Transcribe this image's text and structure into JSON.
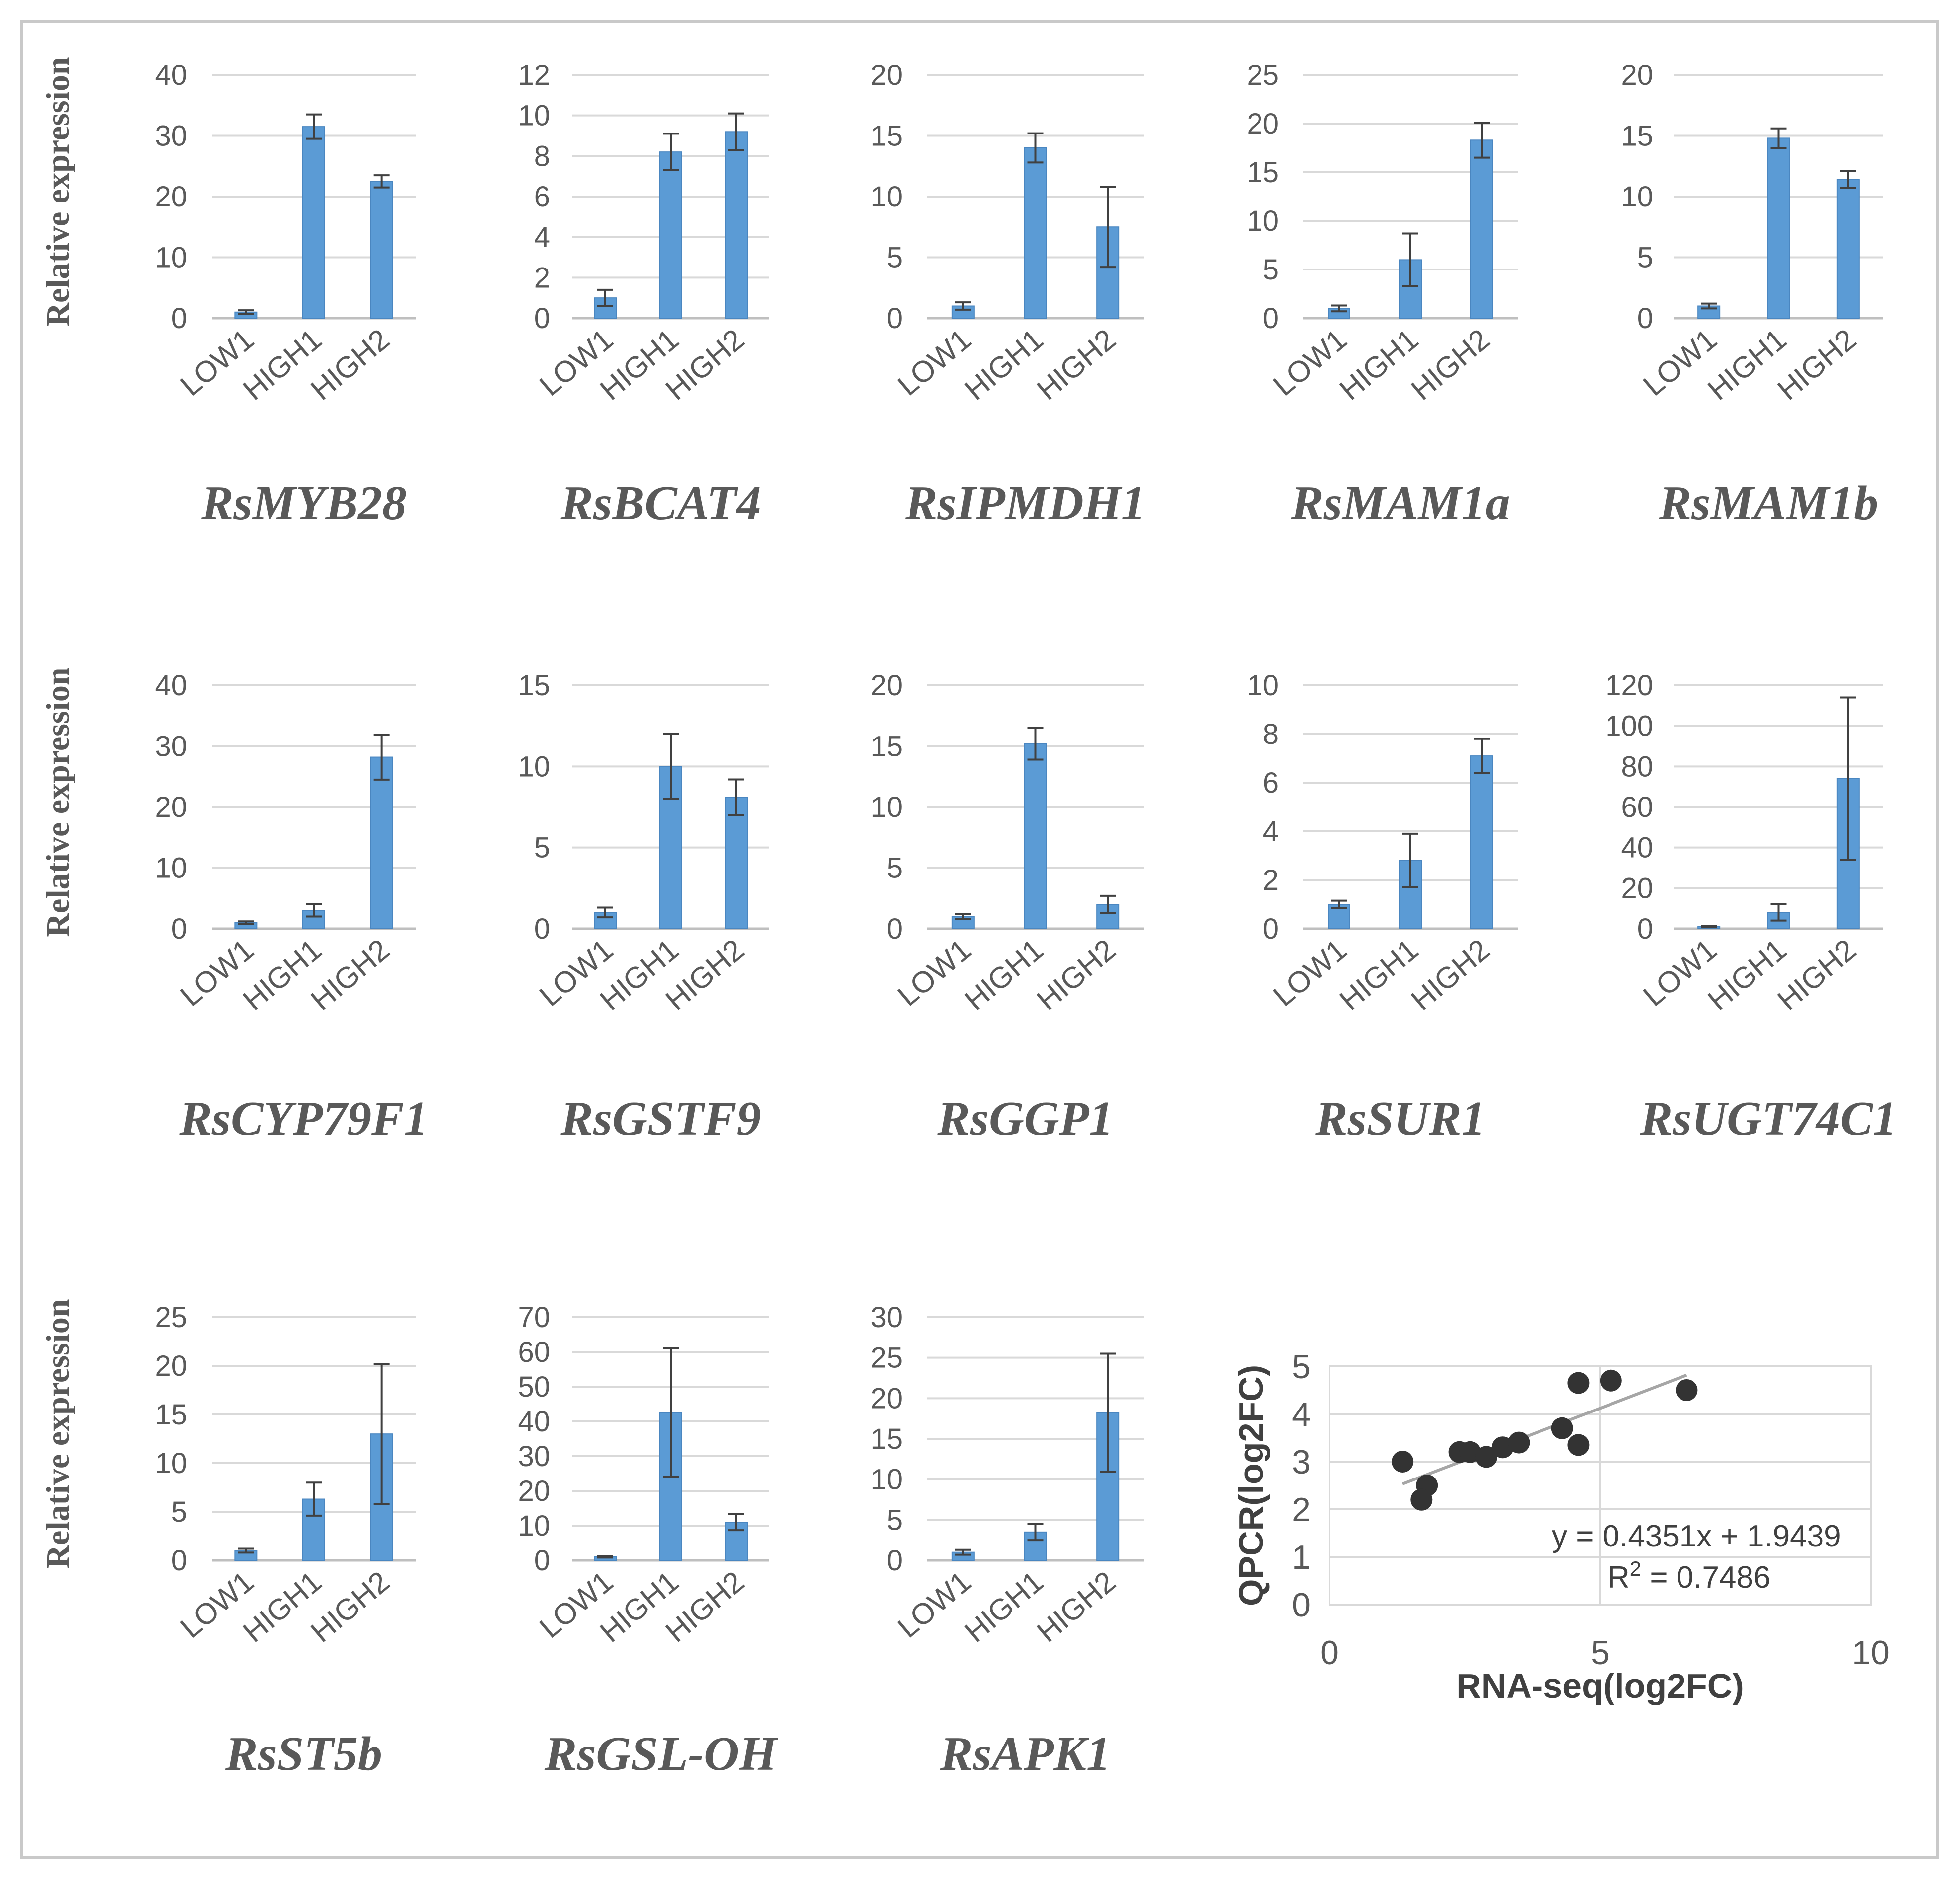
{
  "page": {
    "y_axis_label": "Relative expression"
  },
  "colors": {
    "bar": "#5b9bd5",
    "bar_edge": "#4a86c0",
    "grid": "#d9d9d9",
    "error": "#404040",
    "point": "#333333",
    "trend": "#a6a6a6"
  },
  "chart_data": [
    {
      "type": "bar",
      "title": "RsMYB28",
      "categories": [
        "LOW1",
        "HIGH1",
        "HIGH2"
      ],
      "values": [
        1,
        31.5,
        22.5
      ],
      "errors": [
        0.3,
        2,
        1
      ],
      "ylim": [
        0,
        40
      ],
      "yticks": [
        0,
        10,
        20,
        30,
        40
      ]
    },
    {
      "type": "bar",
      "title": "RsBCAT4",
      "categories": [
        "LOW1",
        "HIGH1",
        "HIGH2"
      ],
      "values": [
        1,
        8.2,
        9.2
      ],
      "errors": [
        0.4,
        0.9,
        0.9
      ],
      "ylim": [
        0,
        12
      ],
      "yticks": [
        0,
        2,
        4,
        6,
        8,
        10,
        12
      ]
    },
    {
      "type": "bar",
      "title": "RsIPMDH1",
      "categories": [
        "LOW1",
        "HIGH1",
        "HIGH2"
      ],
      "values": [
        1,
        14,
        7.5
      ],
      "errors": [
        0.3,
        1.2,
        3.3
      ],
      "ylim": [
        0,
        20
      ],
      "yticks": [
        0,
        5,
        10,
        15,
        20
      ]
    },
    {
      "type": "bar",
      "title": "RsMAM1a",
      "categories": [
        "LOW1",
        "HIGH1",
        "HIGH2"
      ],
      "values": [
        1,
        6,
        18.3
      ],
      "errors": [
        0.3,
        2.7,
        1.8
      ],
      "ylim": [
        0,
        25
      ],
      "yticks": [
        0,
        5,
        10,
        15,
        20,
        25
      ]
    },
    {
      "type": "bar",
      "title": "RsMAM1b",
      "categories": [
        "LOW1",
        "HIGH1",
        "HIGH2"
      ],
      "values": [
        1,
        14.8,
        11.4
      ],
      "errors": [
        0.2,
        0.8,
        0.7
      ],
      "ylim": [
        0,
        20
      ],
      "yticks": [
        0,
        5,
        10,
        15,
        20
      ]
    },
    {
      "type": "bar",
      "title": "RsCYP79F1",
      "categories": [
        "LOW1",
        "HIGH1",
        "HIGH2"
      ],
      "values": [
        1,
        3,
        28.2
      ],
      "errors": [
        0.2,
        1,
        3.7
      ],
      "ylim": [
        0,
        40
      ],
      "yticks": [
        0,
        10,
        20,
        30,
        40
      ]
    },
    {
      "type": "bar",
      "title": "RsGSTF9",
      "categories": [
        "LOW1",
        "HIGH1",
        "HIGH2"
      ],
      "values": [
        1,
        10,
        8.1
      ],
      "errors": [
        0.3,
        2,
        1.1
      ],
      "ylim": [
        0,
        15
      ],
      "yticks": [
        0,
        5,
        10,
        15
      ]
    },
    {
      "type": "bar",
      "title": "RsGGP1",
      "categories": [
        "LOW1",
        "HIGH1",
        "HIGH2"
      ],
      "values": [
        1,
        15.2,
        2
      ],
      "errors": [
        0.2,
        1.3,
        0.7
      ],
      "ylim": [
        0,
        20
      ],
      "yticks": [
        0,
        5,
        10,
        15,
        20
      ]
    },
    {
      "type": "bar",
      "title": "RsSUR1",
      "categories": [
        "LOW1",
        "HIGH1",
        "HIGH2"
      ],
      "values": [
        1,
        2.8,
        7.1
      ],
      "errors": [
        0.15,
        1.1,
        0.7
      ],
      "ylim": [
        0,
        10
      ],
      "yticks": [
        0,
        2,
        4,
        6,
        8,
        10
      ]
    },
    {
      "type": "bar",
      "title": "RsUGT74C1",
      "categories": [
        "LOW1",
        "HIGH1",
        "HIGH2"
      ],
      "values": [
        1,
        8,
        74
      ],
      "errors": [
        0.3,
        4,
        40
      ],
      "ylim": [
        0,
        120
      ],
      "yticks": [
        0,
        20,
        40,
        60,
        80,
        100,
        120
      ]
    },
    {
      "type": "bar",
      "title": "RsST5b",
      "categories": [
        "LOW1",
        "HIGH1",
        "HIGH2"
      ],
      "values": [
        1,
        6.3,
        13
      ],
      "errors": [
        0.2,
        1.7,
        7.2
      ],
      "ylim": [
        0,
        25
      ],
      "yticks": [
        0,
        5,
        10,
        15,
        20,
        25
      ]
    },
    {
      "type": "bar",
      "title": "RsGSL-OH",
      "categories": [
        "LOW1",
        "HIGH1",
        "HIGH2"
      ],
      "values": [
        1,
        42.5,
        11
      ],
      "errors": [
        0.2,
        18.5,
        2.3
      ],
      "ylim": [
        0,
        70
      ],
      "yticks": [
        0,
        10,
        20,
        30,
        40,
        50,
        60,
        70
      ]
    },
    {
      "type": "bar",
      "title": "RsAPK1",
      "categories": [
        "LOW1",
        "HIGH1",
        "HIGH2"
      ],
      "values": [
        1,
        3.5,
        18.2
      ],
      "errors": [
        0.3,
        1,
        7.3
      ],
      "ylim": [
        0,
        30
      ],
      "yticks": [
        0,
        5,
        10,
        15,
        20,
        25,
        30
      ]
    },
    {
      "type": "scatter",
      "title": "",
      "xlabel": "RNA-seq(log2FC)",
      "ylabel": "QPCR(log2FC)",
      "xlim": [
        0,
        10
      ],
      "ylim": [
        0,
        5
      ],
      "xticks": [
        0,
        5,
        10
      ],
      "yticks": [
        0,
        1,
        2,
        3,
        4,
        5
      ],
      "x": [
        1.35,
        1.8,
        1.7,
        2.4,
        2.6,
        2.9,
        3.2,
        3.5,
        4.3,
        4.6,
        4.6,
        5.2,
        6.6
      ],
      "y": [
        3.0,
        2.5,
        2.2,
        3.2,
        3.2,
        3.1,
        3.3,
        3.4,
        3.7,
        3.35,
        4.65,
        4.7,
        4.5
      ],
      "trendline": {
        "slope": 0.4351,
        "intercept": 1.9439,
        "x_range": [
          1.35,
          6.6
        ]
      },
      "equation": "y = 0.4351x + 1.9439",
      "r2_label": "R",
      "r2_sup": "2",
      "r2_value": " = 0.7486"
    }
  ]
}
